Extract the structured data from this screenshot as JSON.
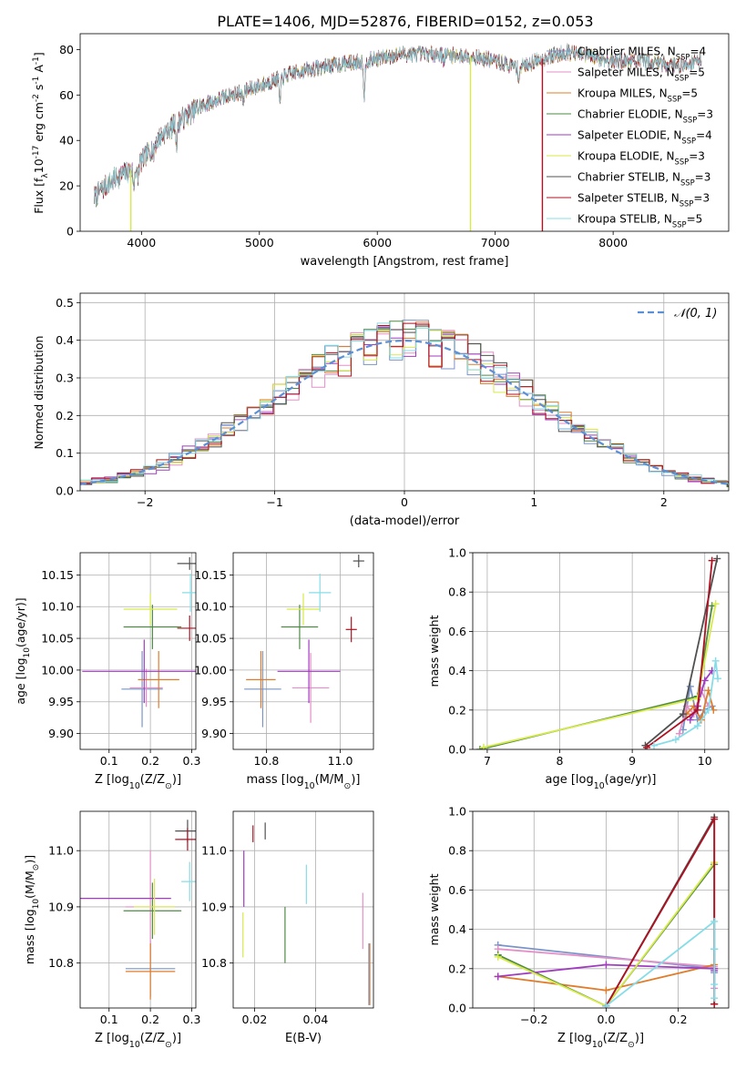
{
  "figure": {
    "suptitle": "PLATE=1406, MJD=52876, FIBERID=0152, z=0.053"
  },
  "series_styles": [
    {
      "name": "Chabrier MILES, N$_{SSP}$=4",
      "label": "Chabrier MILES, N",
      "sub": "SSP",
      "tail": "=4",
      "color": "#7a94c8"
    },
    {
      "name": "Salpeter MILES, N$_{SSP}$=5",
      "label": "Salpeter MILES, N",
      "sub": "SSP",
      "tail": "=5",
      "color": "#e48fc8"
    },
    {
      "name": "Kroupa MILES, N$_{SSP}$=5",
      "label": "Kroupa MILES, N",
      "sub": "SSP",
      "tail": "=5",
      "color": "#e07c2a"
    },
    {
      "name": "Chabrier ELODIE, N$_{SSP}$=3",
      "label": "Chabrier ELODIE, N",
      "sub": "SSP",
      "tail": "=3",
      "color": "#4f8a45"
    },
    {
      "name": "Salpeter ELODIE, N$_{SSP}$=4",
      "label": "Salpeter ELODIE, N",
      "sub": "SSP",
      "tail": "=4",
      "color": "#a03cc0"
    },
    {
      "name": "Kroupa ELODIE, N$_{SSP}$=3",
      "label": "Kroupa ELODIE, N",
      "sub": "SSP",
      "tail": "=3",
      "color": "#d8ea4a"
    },
    {
      "name": "Chabrier STELIB, N$_{SSP}$=3",
      "label": "Chabrier STELIB, N",
      "sub": "SSP",
      "tail": "=3",
      "color": "#505050"
    },
    {
      "name": "Salpeter STELIB, N$_{SSP}$=3",
      "label": "Salpeter STELIB, N",
      "sub": "SSP",
      "tail": "=3",
      "color": "#b01020"
    },
    {
      "name": "Kroupa STELIB, N$_{SSP}$=5",
      "label": "Kroupa STELIB, N",
      "sub": "SSP",
      "tail": "=5",
      "color": "#86dde8"
    }
  ],
  "chart_data": [
    {
      "id": "spectrum",
      "type": "line",
      "title": "PLATE=1406, MJD=52876, FIBERID=0152, z=0.053",
      "xlabel": "wavelength [Angstrom, rest frame]",
      "ylabel": "Flux [f$_\\lambda$10$^{-17}$ erg cm$^{-2}$ s$^{-1}$ A$^{-1}$]",
      "xlim": [
        3480,
        8980
      ],
      "ylim": [
        0,
        87
      ],
      "xticks": [
        4000,
        5000,
        6000,
        7000,
        8000
      ],
      "yticks": [
        0,
        20,
        40,
        60,
        80
      ],
      "grid": false,
      "legend": "upper right",
      "continuum_knots": [
        [
          3600,
          15
        ],
        [
          3700,
          20
        ],
        [
          3800,
          24
        ],
        [
          3950,
          28
        ],
        [
          4050,
          34
        ],
        [
          4150,
          41
        ],
        [
          4300,
          48
        ],
        [
          4500,
          55
        ],
        [
          4700,
          59
        ],
        [
          4900,
          62
        ],
        [
          5100,
          66
        ],
        [
          5300,
          70
        ],
        [
          5600,
          73
        ],
        [
          5900,
          75
        ],
        [
          6200,
          78
        ],
        [
          6500,
          78
        ],
        [
          6800,
          77
        ],
        [
          7000,
          75
        ],
        [
          7200,
          72
        ],
        [
          7400,
          76
        ],
        [
          7600,
          79
        ],
        [
          7800,
          77
        ],
        [
          8000,
          75
        ],
        [
          8200,
          75
        ],
        [
          8400,
          74
        ],
        [
          8600,
          73
        ],
        [
          8750,
          76
        ]
      ],
      "absorption_features": [
        [
          3934,
          -9
        ],
        [
          3968,
          -7
        ],
        [
          4101,
          -4
        ],
        [
          4300,
          -10
        ],
        [
          4861,
          -4
        ],
        [
          5175,
          -12
        ],
        [
          5890,
          -16
        ],
        [
          6563,
          -3
        ],
        [
          7200,
          -5
        ]
      ],
      "drop_lines": [
        [
          3910,
          "#d8ea4a"
        ],
        [
          6790,
          "#d8ea4a"
        ],
        [
          7400,
          "#b01020"
        ]
      ]
    },
    {
      "id": "residuals",
      "type": "histogram",
      "xlabel": "(data-model)/error",
      "ylabel": "Normed distribution",
      "xlim": [
        -2.5,
        2.5
      ],
      "ylim": [
        0,
        0.525
      ],
      "xticks": [
        -2,
        -1,
        0,
        1,
        2
      ],
      "yticks": [
        0.0,
        0.1,
        0.2,
        0.3,
        0.4,
        0.5
      ],
      "grid": true,
      "legend": "upper right",
      "reference_curve": {
        "label": "N(0,1)",
        "distribution": "normal",
        "mean": 0,
        "sigma": 1,
        "color": "#5b8fd6"
      },
      "bin_width": 0.1
    },
    {
      "id": "age_vs_Z",
      "type": "errorbar",
      "xlabel": "Z [log$_{10}$(Z/Z$_\\odot$)]",
      "ylabel": "age  [log$_{10}$(age/yr)]",
      "xlim": [
        0.03,
        0.31
      ],
      "ylim": [
        9.875,
        10.185
      ],
      "xticks": [
        0.1,
        0.2,
        0.3
      ],
      "yticks": [
        9.9,
        9.95,
        10.0,
        10.05,
        10.1,
        10.15
      ],
      "grid": true,
      "points": [
        {
          "x": 0.18,
          "y": 9.97,
          "xerr": 0.05,
          "yerr": 0.06
        },
        {
          "x": 0.19,
          "y": 9.972,
          "xerr": 0.04,
          "yerr": 0.03
        },
        {
          "x": 0.22,
          "y": 9.985,
          "xerr": 0.05,
          "yerr": 0.045
        },
        {
          "x": 0.205,
          "y": 10.068,
          "xerr": 0.07,
          "yerr": 0.035
        },
        {
          "x": 0.185,
          "y": 9.998,
          "xerr": 0.15,
          "yerr": 0.05
        },
        {
          "x": 0.2,
          "y": 10.096,
          "xerr": 0.065,
          "yerr": 0.025
        },
        {
          "x": 0.295,
          "y": 10.168,
          "xerr": 0.03,
          "yerr": 0.01
        },
        {
          "x": 0.295,
          "y": 10.066,
          "xerr": 0.03,
          "yerr": 0.02
        },
        {
          "x": 0.297,
          "y": 10.122,
          "xerr": 0.02,
          "yerr": 0.03
        }
      ]
    },
    {
      "id": "age_vs_mass",
      "type": "errorbar",
      "xlabel": "mass [log$_{10}$(M/M$_\\odot$)]",
      "ylabel": "",
      "xlim": [
        10.71,
        11.09
      ],
      "ylim": [
        9.875,
        10.185
      ],
      "xticks": [
        10.8,
        11.0
      ],
      "yticks": [
        9.9,
        9.95,
        10.0,
        10.05,
        10.1,
        10.15
      ],
      "grid": true,
      "points": [
        {
          "x": 10.79,
          "y": 9.97,
          "xerr": 0.05,
          "yerr": 0.06
        },
        {
          "x": 10.92,
          "y": 9.972,
          "xerr": 0.05,
          "yerr": 0.055
        },
        {
          "x": 10.785,
          "y": 9.985,
          "xerr": 0.04,
          "yerr": 0.045
        },
        {
          "x": 10.89,
          "y": 10.068,
          "xerr": 0.05,
          "yerr": 0.035
        },
        {
          "x": 10.915,
          "y": 9.998,
          "xerr": 0.085,
          "yerr": 0.05
        },
        {
          "x": 10.9,
          "y": 10.096,
          "xerr": 0.045,
          "yerr": 0.025
        },
        {
          "x": 11.05,
          "y": 10.172,
          "xerr": 0.015,
          "yerr": 0.01
        },
        {
          "x": 11.03,
          "y": 10.064,
          "xerr": 0.015,
          "yerr": 0.02
        },
        {
          "x": 10.945,
          "y": 10.122,
          "xerr": 0.03,
          "yerr": 0.03
        }
      ]
    },
    {
      "id": "weight_vs_age",
      "type": "line",
      "xlabel": "age  [log$_{10}$(age/yr)]",
      "ylabel": "mass weight",
      "xlim": [
        6.8,
        10.33
      ],
      "ylim": [
        0,
        1
      ],
      "xticks": [
        7,
        8,
        9,
        10
      ],
      "yticks": [
        0.0,
        0.2,
        0.4,
        0.6,
        0.8,
        1.0
      ],
      "grid": true,
      "series": [
        {
          "name": "Chabrier MILES",
          "x": [
            9.7,
            9.8,
            9.9,
            10.0,
            10.1
          ],
          "y": [
            0.1,
            0.32,
            0.15,
            0.2,
            0.22
          ]
        },
        {
          "name": "Salpeter MILES",
          "x": [
            9.65,
            9.75,
            9.85,
            9.95,
            10.05
          ],
          "y": [
            0.08,
            0.22,
            0.18,
            0.3,
            0.22
          ]
        },
        {
          "name": "Kroupa MILES",
          "x": [
            9.75,
            9.85,
            9.95,
            10.05,
            10.12
          ],
          "y": [
            0.18,
            0.22,
            0.15,
            0.3,
            0.2
          ]
        },
        {
          "name": "Chabrier ELODIE",
          "x": [
            6.9,
            9.9,
            10.1
          ],
          "y": [
            0.0,
            0.27,
            0.73
          ]
        },
        {
          "name": "Salpeter ELODIE",
          "x": [
            9.8,
            9.9,
            10.0,
            10.1
          ],
          "y": [
            0.15,
            0.22,
            0.35,
            0.4
          ]
        },
        {
          "name": "Kroupa ELODIE",
          "x": [
            6.95,
            9.9,
            10.15
          ],
          "y": [
            0.01,
            0.26,
            0.74
          ]
        },
        {
          "name": "Chabrier STELIB",
          "x": [
            9.18,
            9.7,
            10.17
          ],
          "y": [
            0.02,
            0.18,
            0.97
          ]
        },
        {
          "name": "Salpeter STELIB",
          "x": [
            9.2,
            9.9,
            10.1
          ],
          "y": [
            0.01,
            0.2,
            0.96
          ]
        },
        {
          "name": "Kroupa STELIB",
          "x": [
            9.3,
            9.6,
            9.9,
            10.05,
            10.15,
            10.18
          ],
          "y": [
            0.02,
            0.05,
            0.12,
            0.2,
            0.45,
            0.36
          ]
        }
      ]
    },
    {
      "id": "mass_vs_Z",
      "type": "errorbar",
      "xlabel": "Z [log$_{10}$(Z/Z$_\\odot$)]",
      "ylabel": "mass [log$_{10}$(M/M$_\\odot$)]",
      "xlim": [
        0.03,
        0.31
      ],
      "ylim": [
        10.72,
        11.07
      ],
      "xticks": [
        0.1,
        0.2,
        0.3
      ],
      "yticks": [
        10.8,
        10.9,
        11.0
      ],
      "grid": true,
      "points": [
        {
          "x": 0.2,
          "y": 10.79,
          "xerr": 0.06,
          "yerr": 0.05
        },
        {
          "x": 0.2,
          "y": 10.9,
          "xerr": 0.06,
          "yerr": 0.1
        },
        {
          "x": 0.2,
          "y": 10.785,
          "xerr": 0.06,
          "yerr": 0.05
        },
        {
          "x": 0.205,
          "y": 10.893,
          "xerr": 0.07,
          "yerr": 0.05
        },
        {
          "x": 0.13,
          "y": 10.915,
          "xerr": 0.12,
          "yerr": 0.0
        },
        {
          "x": 0.21,
          "y": 10.9,
          "xerr": 0.05,
          "yerr": 0.05
        },
        {
          "x": 0.29,
          "y": 11.035,
          "xerr": 0.03,
          "yerr": 0.02
        },
        {
          "x": 0.29,
          "y": 11.02,
          "xerr": 0.03,
          "yerr": 0.02
        },
        {
          "x": 0.295,
          "y": 10.945,
          "xerr": 0.02,
          "yerr": 0.035
        }
      ]
    },
    {
      "id": "mass_vs_ebv",
      "type": "errorbar",
      "xlabel": "E(B-V)",
      "ylabel": "",
      "xlim": [
        0.013,
        0.059
      ],
      "ylim": [
        10.72,
        11.07
      ],
      "xticks": [
        0.02,
        0.04
      ],
      "yticks": [
        10.8,
        10.9,
        11.0
      ],
      "grid": true,
      "points": [
        {
          "x": 0.0575,
          "y": 10.78,
          "xerr": 0.0,
          "yerr": 0.055
        },
        {
          "x": 0.0555,
          "y": 10.875,
          "xerr": 0.0,
          "yerr": 0.05
        },
        {
          "x": 0.0578,
          "y": 10.78,
          "xerr": 0.0,
          "yerr": 0.055
        },
        {
          "x": 0.03,
          "y": 10.85,
          "xerr": 0.0,
          "yerr": 0.05
        },
        {
          "x": 0.0165,
          "y": 10.95,
          "xerr": 0.0,
          "yerr": 0.05
        },
        {
          "x": 0.0162,
          "y": 10.85,
          "xerr": 0.0,
          "yerr": 0.04
        },
        {
          "x": 0.0235,
          "y": 11.035,
          "xerr": 0.0,
          "yerr": 0.015
        },
        {
          "x": 0.0195,
          "y": 11.03,
          "xerr": 0.0,
          "yerr": 0.015
        },
        {
          "x": 0.037,
          "y": 10.94,
          "xerr": 0.0,
          "yerr": 0.035
        }
      ]
    },
    {
      "id": "weight_vs_Z",
      "type": "line",
      "xlabel": "Z [log$_{10}$(Z/Z$_\\odot$)]",
      "ylabel": "mass weight",
      "xlim": [
        -0.37,
        0.34
      ],
      "ylim": [
        0,
        1
      ],
      "xticks": [
        -0.2,
        0.0,
        0.2
      ],
      "yticks": [
        0.0,
        0.2,
        0.4,
        0.6,
        0.8,
        1.0
      ],
      "grid": true,
      "series": [
        {
          "name": "Chabrier MILES",
          "x": [
            -0.3,
            0.3,
            0.3,
            0.3
          ],
          "y": [
            0.32,
            0.2,
            0.3,
            0.18
          ]
        },
        {
          "name": "Salpeter MILES",
          "x": [
            -0.3,
            0.3,
            0.3
          ],
          "y": [
            0.3,
            0.21,
            0.1
          ]
        },
        {
          "name": "Kroupa MILES",
          "x": [
            -0.3,
            0.0,
            0.3,
            0.3
          ],
          "y": [
            0.16,
            0.09,
            0.22,
            0.2
          ]
        },
        {
          "name": "Chabrier ELODIE",
          "x": [
            -0.3,
            0.0,
            0.3
          ],
          "y": [
            0.27,
            0.01,
            0.73
          ]
        },
        {
          "name": "Salpeter ELODIE",
          "x": [
            -0.3,
            0.0,
            0.3,
            0.3
          ],
          "y": [
            0.16,
            0.22,
            0.2,
            0.19
          ]
        },
        {
          "name": "Kroupa ELODIE",
          "x": [
            -0.3,
            0.0,
            0.3
          ],
          "y": [
            0.26,
            0.01,
            0.74
          ]
        },
        {
          "name": "Chabrier STELIB",
          "x": [
            0.0,
            0.3,
            0.3
          ],
          "y": [
            0.01,
            0.97,
            0.02
          ]
        },
        {
          "name": "Salpeter STELIB",
          "x": [
            0.0,
            0.3,
            0.3
          ],
          "y": [
            0.01,
            0.96,
            0.02
          ]
        },
        {
          "name": "Kroupa STELIB",
          "x": [
            0.0,
            0.3,
            0.3,
            0.3,
            0.3
          ],
          "y": [
            0.01,
            0.44,
            0.3,
            0.12,
            0.05
          ]
        }
      ]
    }
  ]
}
